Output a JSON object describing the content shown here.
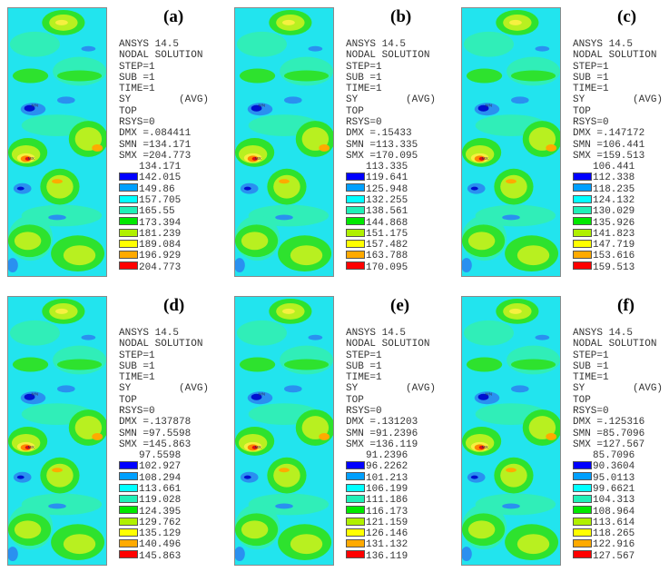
{
  "header_lines": [
    "ANSYS 14.5",
    "NODAL SOLUTION",
    "STEP=1",
    "SUB =1",
    "TIME=1",
    "SY        (AVG)",
    "TOP",
    "RSYS=0"
  ],
  "legend_colors": [
    "#0000ff",
    "#00a0ff",
    "#00ffff",
    "#20f0b8",
    "#00e800",
    "#b0f000",
    "#ffff00",
    "#ffaa00",
    "#ff0000"
  ],
  "panels": [
    {
      "label": "(a)",
      "dmx": "DMX =.084411",
      "smn": "SMN =134.171",
      "smx": "SMX =204.773",
      "values": [
        "134.171",
        "142.015",
        "149.86",
        "157.705",
        "165.55",
        "173.394",
        "181.239",
        "189.084",
        "196.929",
        "204.773"
      ]
    },
    {
      "label": "(b)",
      "dmx": "DMX =.15433",
      "smn": "SMN =113.335",
      "smx": "SMX =170.095",
      "values": [
        "113.335",
        "119.641",
        "125.948",
        "132.255",
        "138.561",
        "144.868",
        "151.175",
        "157.482",
        "163.788",
        "170.095"
      ]
    },
    {
      "label": "(c)",
      "dmx": "DMX =.147172",
      "smn": "SMN =106.441",
      "smx": "SMX =159.513",
      "values": [
        "106.441",
        "112.338",
        "118.235",
        "124.132",
        "130.029",
        "135.926",
        "141.823",
        "147.719",
        "153.616",
        "159.513"
      ]
    },
    {
      "label": "(d)",
      "dmx": "DMX =.137878",
      "smn": "SMN =97.5598",
      "smx": "SMX =145.863",
      "values": [
        "97.5598",
        "102.927",
        "108.294",
        "113.661",
        "119.028",
        "124.395",
        "129.762",
        "135.129",
        "140.496",
        "145.863"
      ]
    },
    {
      "label": "(e)",
      "dmx": "DMX =.131203",
      "smn": "SMN =91.2396",
      "smx": "SMX =136.119",
      "values": [
        "91.2396",
        "96.2262",
        "101.213",
        "106.199",
        "111.186",
        "116.173",
        "121.159",
        "126.146",
        "131.132",
        "136.119"
      ]
    },
    {
      "label": "(f)",
      "dmx": "DMX =.125316",
      "smn": "SMN =85.7096",
      "smx": "SMX =127.567",
      "values": [
        "85.7096",
        "90.3604",
        "95.0113",
        "99.6621",
        "104.313",
        "108.964",
        "113.614",
        "118.265",
        "122.916",
        "127.567"
      ]
    }
  ],
  "plot_markers": {
    "min": "MN",
    "max": "MX"
  }
}
